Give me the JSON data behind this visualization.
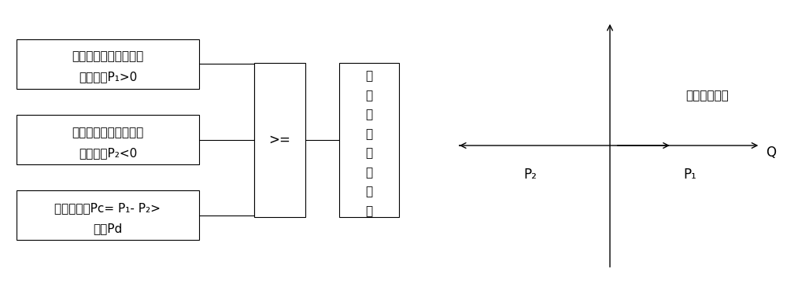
{
  "bg_color": "#ffffff",
  "box1_line1": "流经三相电流互感器的",
  "box1_line2": "零序功率P₁>0",
  "box2_line1": "流经零序电流互感器的",
  "box2_line2": "零序功率P₂<0",
  "box3_line1": "零序功率差Pc= P₁- P₂>",
  "box3_line2": "阈值Pd",
  "gate_text": ">=",
  "out_chars": [
    "电",
    "缆",
    "终",
    "端",
    "单",
    "相",
    "接",
    "地"
  ],
  "label_bus": "流入母线方向",
  "label_Q": "Q",
  "label_P1": "P₁",
  "label_P2": "P₂",
  "text_color": "#000000",
  "line_color": "#000000",
  "fontsize_cn": 11,
  "fontsize_label": 12
}
